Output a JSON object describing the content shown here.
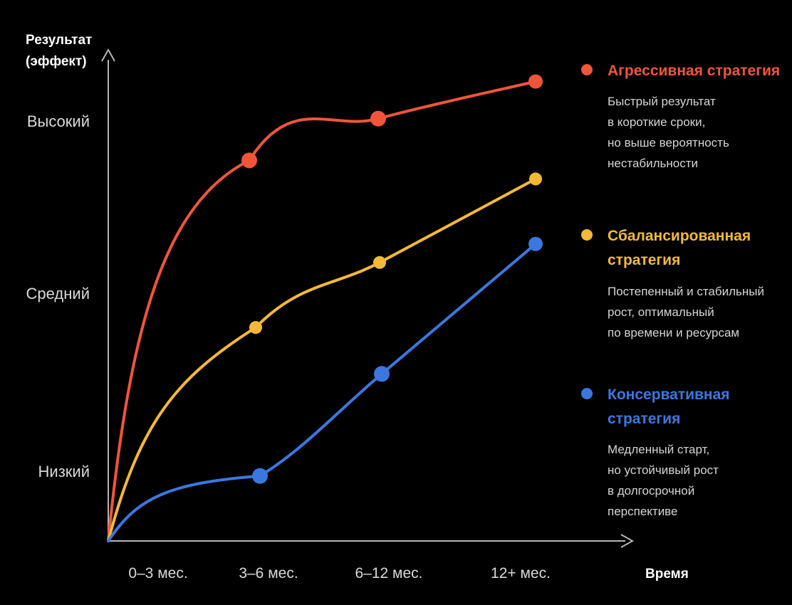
{
  "chart_data": {
    "type": "line",
    "ylabel_lines": [
      "Результат",
      "(эффект)"
    ],
    "xlabel": "Время",
    "categories": [
      "0–3 мес.",
      "3–6 мес.",
      "6–12 мес.",
      "12+ мес."
    ],
    "y_levels": [
      "Низкий",
      "Средний",
      "Высокий"
    ],
    "ylim": [
      0,
      1
    ],
    "series": [
      {
        "key": "aggressive",
        "name_lines": [
          "Агрессивная стратегия"
        ],
        "color": "#f0553a",
        "description": [
          "Быстрый результат",
          "в короткие сроки,",
          "но выше вероятность",
          "нестабильности"
        ],
        "points": [
          {
            "x": "start",
            "y": 0.0
          },
          {
            "x": "3–6 мес.",
            "y": 0.82
          },
          {
            "x": "6–12 мес.",
            "y": 0.91
          },
          {
            "x": "12+ мес.",
            "y": 0.99
          }
        ]
      },
      {
        "key": "balanced",
        "name_lines": [
          "Сбалансированная",
          "стратегия"
        ],
        "color": "#f5b935",
        "description": [
          "Постепенный и стабильный",
          "рост, оптимальный",
          "по времени и ресурсам"
        ],
        "points": [
          {
            "x": "start",
            "y": 0.0
          },
          {
            "x": "3–6 мес.",
            "y": 0.46
          },
          {
            "x": "6–12 мес.",
            "y": 0.6
          },
          {
            "x": "12+ мес.",
            "y": 0.78
          }
        ]
      },
      {
        "key": "conservative",
        "name_lines": [
          "Консервативная",
          "стратегия"
        ],
        "color": "#3a78e0",
        "description": [
          "Медленный старт,",
          "но устойчивый рост",
          "в долгосрочной",
          "перспективе"
        ],
        "points": [
          {
            "x": "start",
            "y": 0.0
          },
          {
            "x": "3–6 мес.",
            "y": 0.14
          },
          {
            "x": "6–12 мес.",
            "y": 0.36
          },
          {
            "x": "12+ мес.",
            "y": 0.64
          }
        ]
      }
    ],
    "grid": false,
    "legend_position": "right",
    "colors": {
      "background": "#000000",
      "axis": "#b5b5b5",
      "text": "#ffffff"
    }
  }
}
